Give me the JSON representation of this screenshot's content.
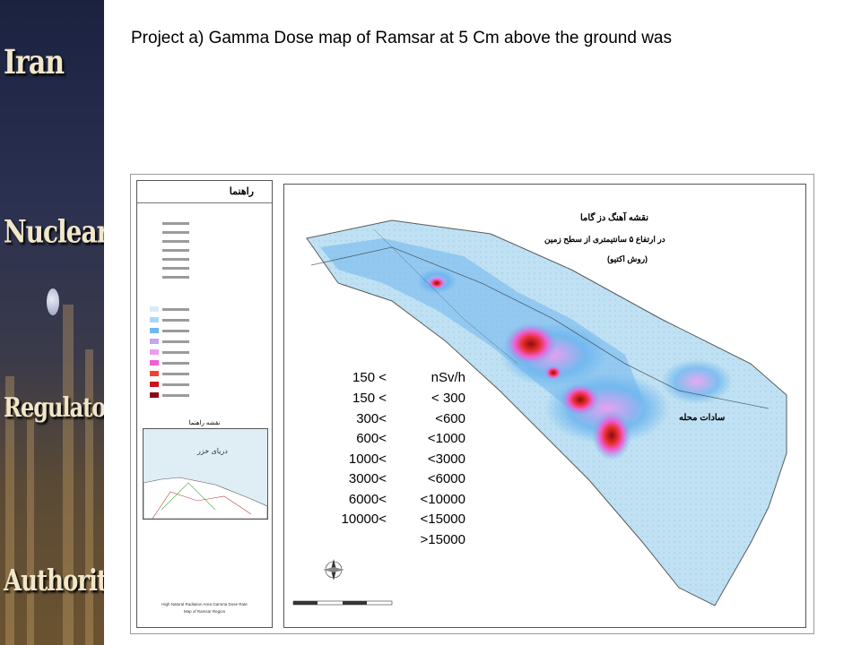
{
  "banner": {
    "words": [
      "Iran",
      "Nuclear",
      "Regulatory",
      "Authority"
    ]
  },
  "title": "Project a) Gamma Dose map of  Ramsar at  5 Cm above the ground was",
  "map": {
    "persian_title_lines": [
      "نقشه آهنگ دز گاما",
      "در ارتفاع ۵ سانتیمتری از سطح زمین",
      "(روش اکتیو)"
    ],
    "legend_heading": "راهنما",
    "inset_heading": "نقشه راهنما",
    "inset_sea_label": "دریای خزر",
    "place_label": "سادات محله",
    "english_caption": [
      "High Natural Radiation Area Gamma Dose Rate",
      "Map of Ramsar Region"
    ],
    "legend_colors": [
      "#d8ecf6",
      "#a8d8f2",
      "#6fb7ef",
      "#c4a6ef",
      "#ee9cf0",
      "#f060d6",
      "#f2402c",
      "#c8141e",
      "#8a0c14"
    ]
  },
  "dose_scale": {
    "unit_row": {
      "left": "150 <",
      "right": "nSv/h"
    },
    "rows": [
      {
        "left": "150 <",
        "right": "< 300"
      },
      {
        "left": "300<",
        "right": "<600"
      },
      {
        "left": "600<",
        "right": "<1000"
      },
      {
        "left": "1000<",
        "right": "<3000"
      },
      {
        "left": "3000<",
        "right": "<6000"
      },
      {
        "left": "6000<",
        "right": "<10000"
      },
      {
        "left": "10000<",
        "right": "<15000"
      },
      {
        "left": "",
        "right": ">15000"
      }
    ]
  }
}
